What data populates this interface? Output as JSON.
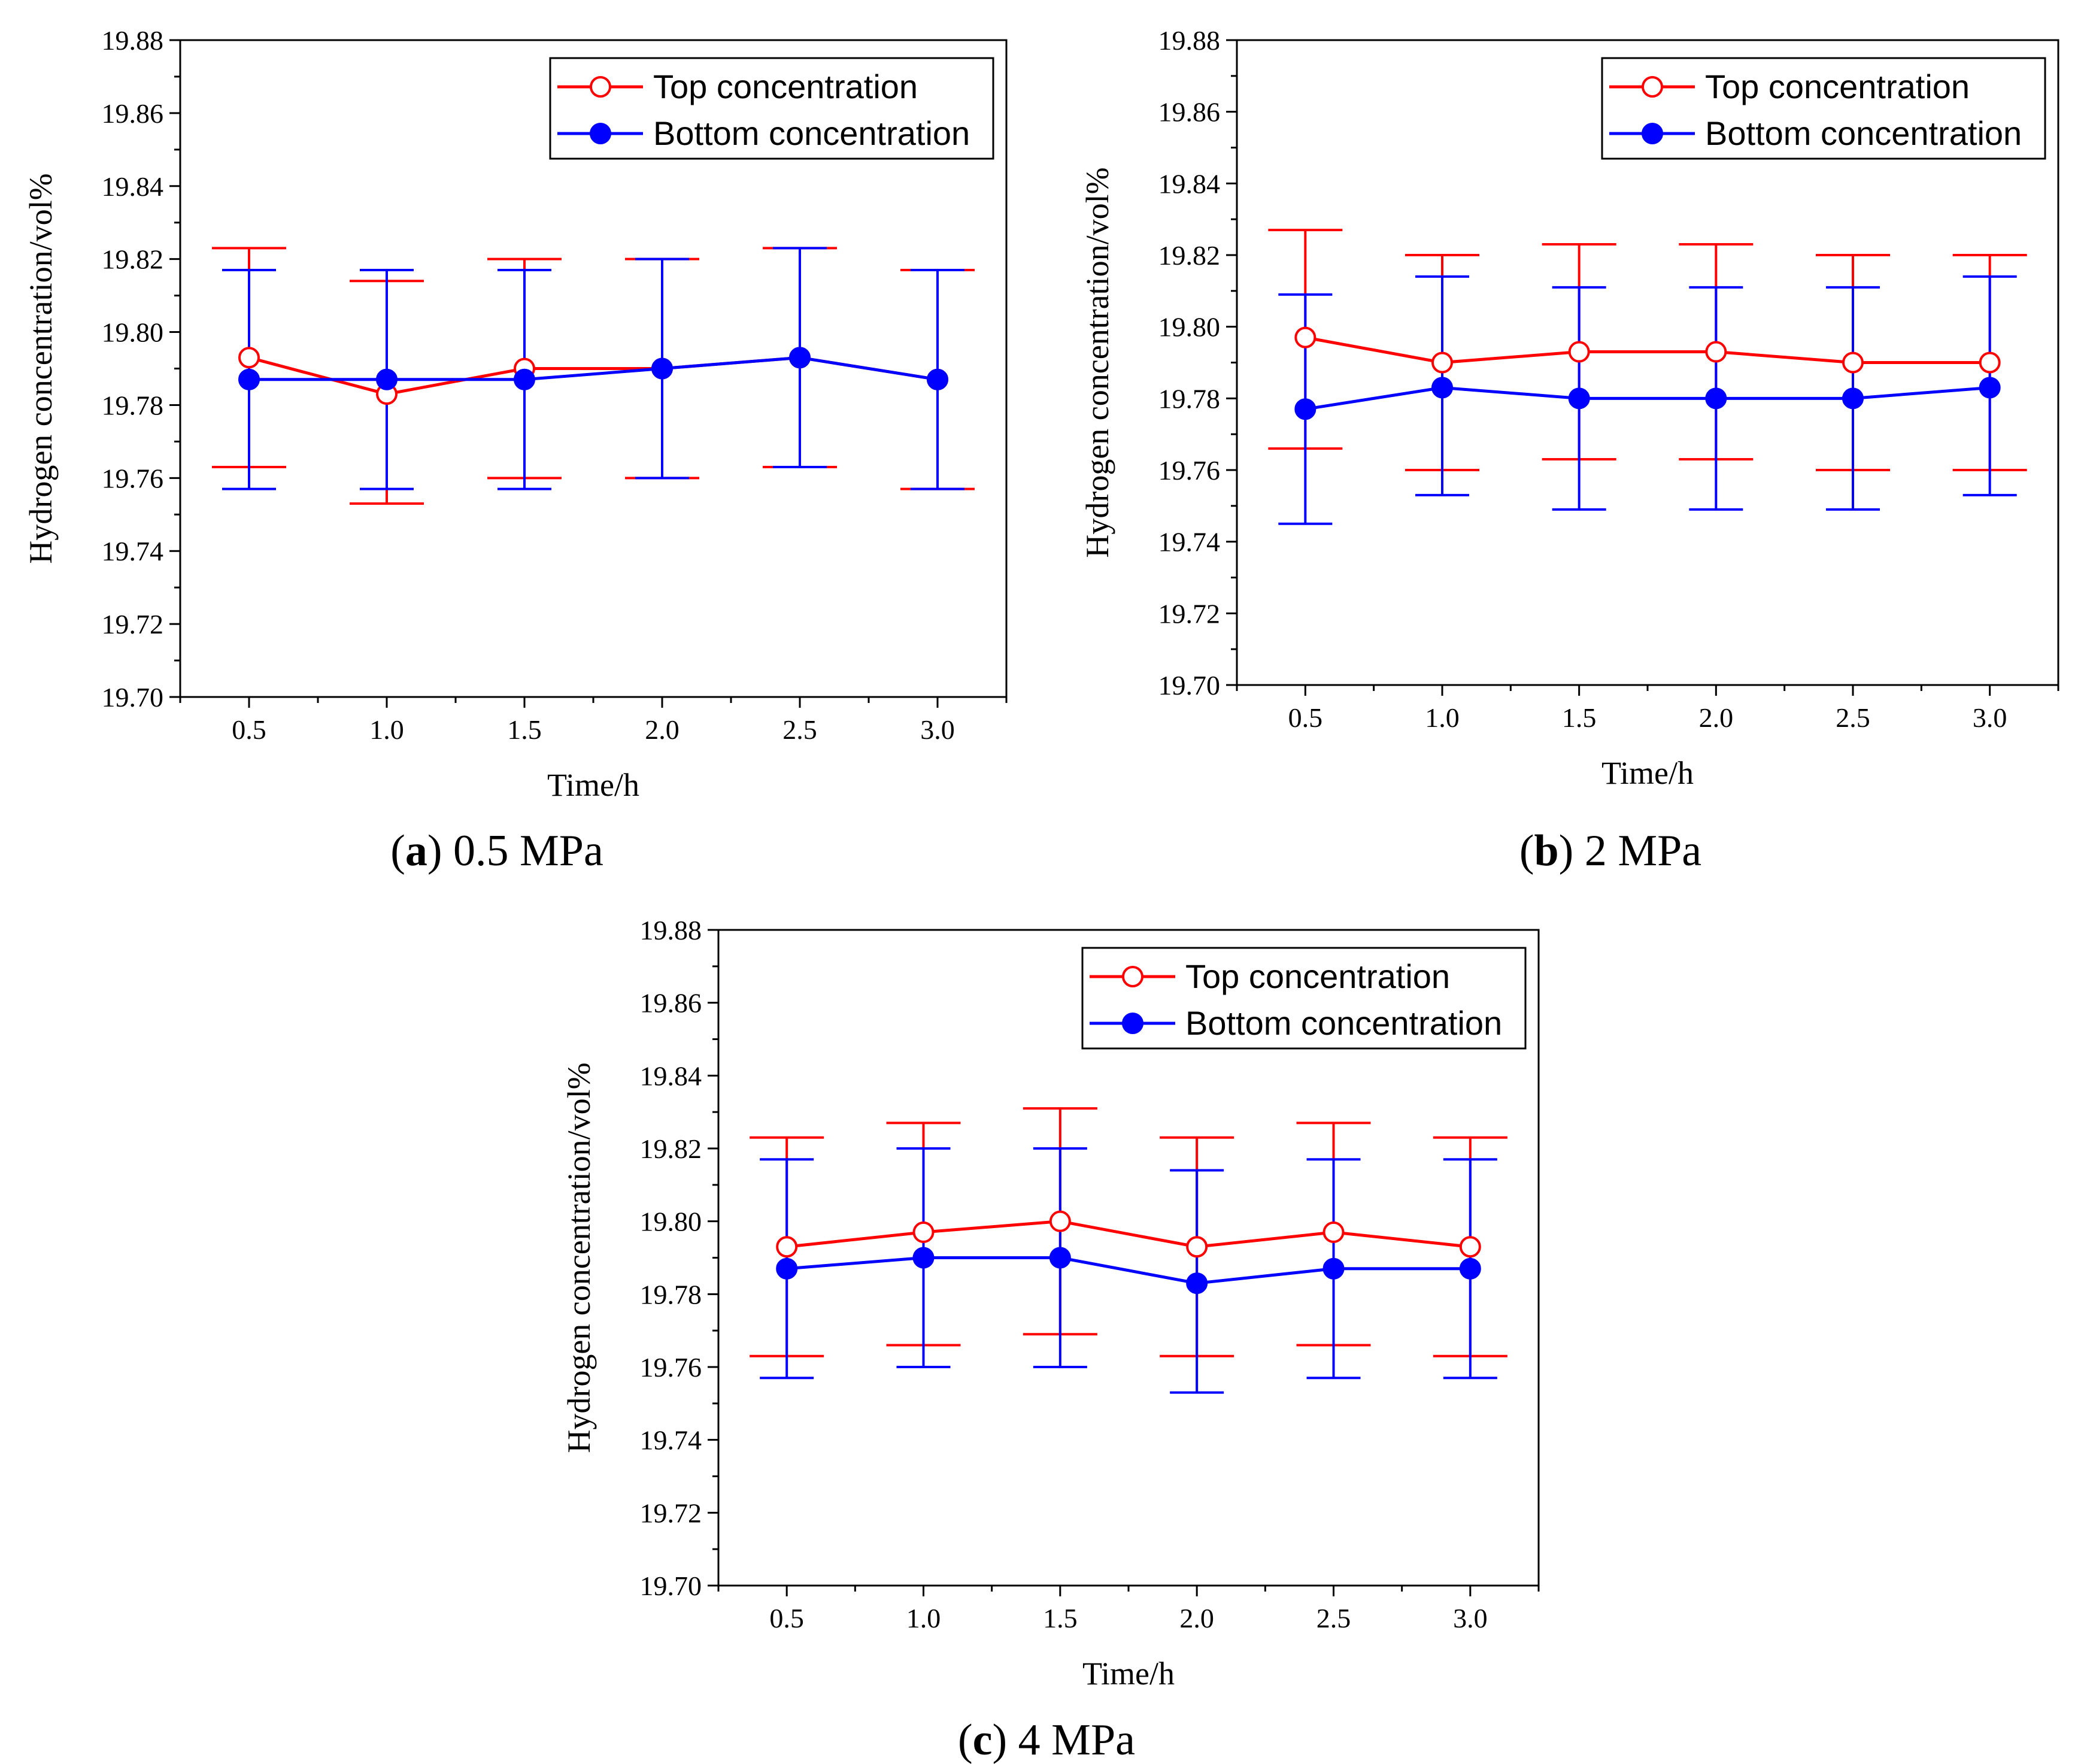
{
  "colors": {
    "top": "#ff0000",
    "bottom": "#0000ff",
    "axis": "#000000"
  },
  "chart_data": [
    {
      "type": "line",
      "panel": "a",
      "caption_letter": "a",
      "caption_text": "0.5 MPa",
      "xlabel": "Time/h",
      "ylabel": "Hydrogen concentration/vol%",
      "x": [
        0.5,
        1.0,
        1.5,
        2.0,
        2.5,
        3.0
      ],
      "x_tick_labels": [
        "0.5",
        "1.0",
        "1.5",
        "2.0",
        "2.5",
        "3.0"
      ],
      "xlim": [
        0.25,
        3.25
      ],
      "ylim": [
        19.7,
        19.88
      ],
      "y_tick_labels": [
        "19.70",
        "19.72",
        "19.74",
        "19.76",
        "19.78",
        "19.80",
        "19.82",
        "19.84",
        "19.86",
        "19.88"
      ],
      "legend_position": "top-right",
      "series": [
        {
          "name": "Top concentration",
          "marker": "open-circle",
          "color": "#ff0000",
          "values": [
            19.793,
            19.783,
            19.79,
            19.79,
            19.793,
            19.787
          ],
          "err_upper": [
            19.823,
            19.814,
            19.82,
            19.82,
            19.823,
            19.817
          ],
          "err_lower": [
            19.763,
            19.753,
            19.76,
            19.76,
            19.763,
            19.757
          ]
        },
        {
          "name": "Bottom concentration",
          "marker": "filled-circle",
          "color": "#0000ff",
          "values": [
            19.787,
            19.787,
            19.787,
            19.79,
            19.793,
            19.787
          ],
          "err_upper": [
            19.817,
            19.817,
            19.817,
            19.82,
            19.823,
            19.817
          ],
          "err_lower": [
            19.757,
            19.757,
            19.757,
            19.76,
            19.763,
            19.757
          ]
        }
      ]
    },
    {
      "type": "line",
      "panel": "b",
      "caption_letter": "b",
      "caption_text": "2 MPa",
      "xlabel": "Time/h",
      "ylabel": "Hydrogen concentration/vol%",
      "x": [
        0.5,
        1.0,
        1.5,
        2.0,
        2.5,
        3.0
      ],
      "x_tick_labels": [
        "0.5",
        "1.0",
        "1.5",
        "2.0",
        "2.5",
        "3.0"
      ],
      "xlim": [
        0.25,
        3.25
      ],
      "ylim": [
        19.7,
        19.88
      ],
      "y_tick_labels": [
        "19.70",
        "19.72",
        "19.74",
        "19.76",
        "19.78",
        "19.80",
        "19.82",
        "19.84",
        "19.86",
        "19.88"
      ],
      "legend_position": "top-right",
      "series": [
        {
          "name": "Top concentration",
          "marker": "open-circle",
          "color": "#ff0000",
          "values": [
            19.797,
            19.79,
            19.793,
            19.793,
            19.79,
            19.79
          ],
          "err_upper": [
            19.827,
            19.82,
            19.823,
            19.823,
            19.82,
            19.82
          ],
          "err_lower": [
            19.766,
            19.76,
            19.763,
            19.763,
            19.76,
            19.76
          ]
        },
        {
          "name": "Bottom concentration",
          "marker": "filled-circle",
          "color": "#0000ff",
          "values": [
            19.777,
            19.783,
            19.78,
            19.78,
            19.78,
            19.783
          ],
          "err_upper": [
            19.809,
            19.814,
            19.811,
            19.811,
            19.811,
            19.814
          ],
          "err_lower": [
            19.745,
            19.753,
            19.749,
            19.749,
            19.749,
            19.753
          ]
        }
      ]
    },
    {
      "type": "line",
      "panel": "c",
      "caption_letter": "c",
      "caption_text": "4 MPa",
      "xlabel": "Time/h",
      "ylabel": "Hydrogen concentration/vol%",
      "x": [
        0.5,
        1.0,
        1.5,
        2.0,
        2.5,
        3.0
      ],
      "x_tick_labels": [
        "0.5",
        "1.0",
        "1.5",
        "2.0",
        "2.5",
        "3.0"
      ],
      "xlim": [
        0.25,
        3.25
      ],
      "ylim": [
        19.7,
        19.88
      ],
      "y_tick_labels": [
        "19.70",
        "19.72",
        "19.74",
        "19.76",
        "19.78",
        "19.80",
        "19.82",
        "19.84",
        "19.86",
        "19.88"
      ],
      "legend_position": "top-right",
      "series": [
        {
          "name": "Top concentration",
          "marker": "open-circle",
          "color": "#ff0000",
          "values": [
            19.793,
            19.797,
            19.8,
            19.793,
            19.797,
            19.793
          ],
          "err_upper": [
            19.823,
            19.827,
            19.831,
            19.823,
            19.827,
            19.823
          ],
          "err_lower": [
            19.763,
            19.766,
            19.769,
            19.763,
            19.766,
            19.763
          ]
        },
        {
          "name": "Bottom concentration",
          "marker": "filled-circle",
          "color": "#0000ff",
          "values": [
            19.787,
            19.79,
            19.79,
            19.783,
            19.787,
            19.787
          ],
          "err_upper": [
            19.817,
            19.82,
            19.82,
            19.814,
            19.817,
            19.817
          ],
          "err_lower": [
            19.757,
            19.76,
            19.76,
            19.753,
            19.757,
            19.757
          ]
        }
      ]
    }
  ]
}
